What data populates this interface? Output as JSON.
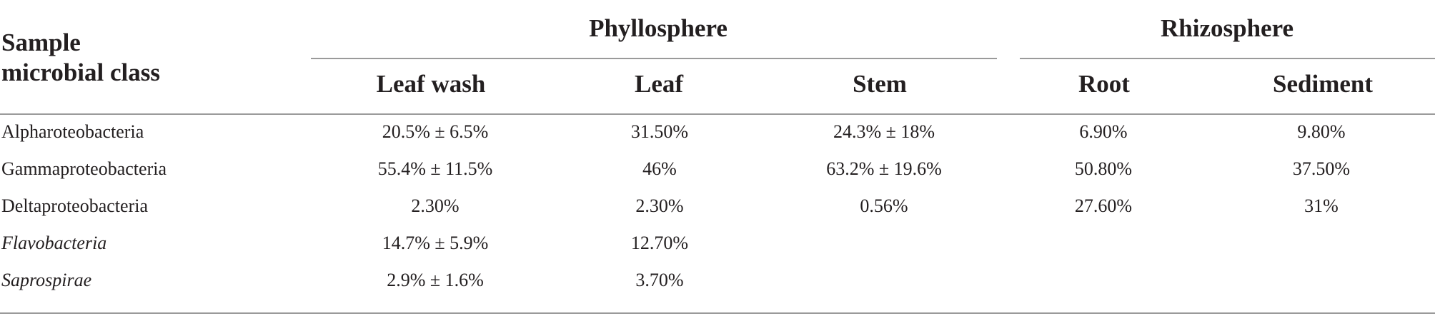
{
  "table": {
    "row_header_title_line1": "Sample",
    "row_header_title_line2": "microbial class",
    "groups": [
      {
        "label": "Phyllosphere"
      },
      {
        "label": "Rhizosphere"
      }
    ],
    "columns": [
      "Leaf wash",
      "Leaf",
      "Stem",
      "Root",
      "Sediment"
    ],
    "rows": [
      {
        "label": "Alpharoteobacteria",
        "italic": false,
        "values": [
          "20.5% ± 6.5%",
          "31.50%",
          "24.3% ± 18%",
          "6.90%",
          "9.80%"
        ]
      },
      {
        "label": "Gammaproteobacteria",
        "italic": false,
        "values": [
          "55.4% ± 11.5%",
          "46%",
          "63.2% ± 19.6%",
          "50.80%",
          "37.50%"
        ]
      },
      {
        "label": "Deltaproteobacteria",
        "italic": false,
        "values": [
          "2.30%",
          "2.30%",
          "0.56%",
          "27.60%",
          "31%"
        ]
      },
      {
        "label": "Flavobacteria",
        "italic": true,
        "values": [
          "14.7% ± 5.9%",
          "12.70%",
          "",
          "",
          ""
        ]
      },
      {
        "label": "Saprospirae",
        "italic": true,
        "values": [
          "2.9% ± 1.6%",
          "3.70%",
          "",
          "",
          ""
        ]
      }
    ]
  }
}
